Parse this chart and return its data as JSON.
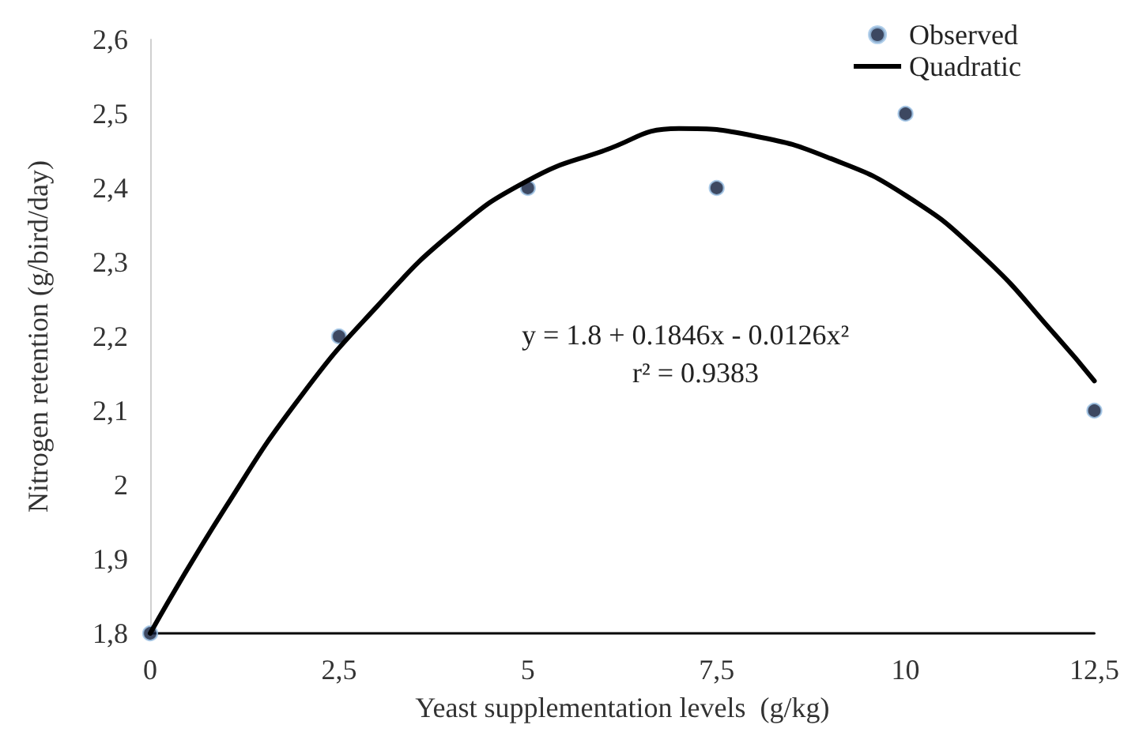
{
  "chart_data": {
    "type": "scatter",
    "xlabel": "Yeast supplementation levels  (g/kg)",
    "ylabel": "Nitrogen retention (g/bird/day)",
    "series": [
      {
        "name": "Observed",
        "color": "#0d1a3a",
        "marker": "circle",
        "x": [
          0,
          2.5,
          5,
          7.5,
          10,
          12.5
        ],
        "values": [
          1.8,
          2.2,
          2.4,
          2.4,
          2.5,
          2.1
        ]
      },
      {
        "name": "Quadratic",
        "type": "line",
        "color": "#000000",
        "marker": "none",
        "line_style": "solid",
        "x": [
          0,
          1,
          2,
          3,
          4,
          5,
          6,
          7,
          8,
          9,
          10,
          11,
          12,
          12.5
        ],
        "values": [
          1.8,
          1.97,
          2.12,
          2.24,
          2.34,
          2.41,
          2.45,
          2.48,
          2.47,
          2.44,
          2.39,
          2.31,
          2.2,
          2.14
        ]
      }
    ],
    "xlim": [
      0,
      12.5
    ],
    "xticks": [
      0,
      {
        "value": 2.5,
        "label": "2,5"
      },
      5,
      {
        "value": 7.5,
        "label": "7,5"
      },
      10,
      {
        "value": 12.5,
        "label": "12,5"
      }
    ],
    "ylim": [
      1.8,
      2.6
    ],
    "yticks": [
      {
        "value": 1.8,
        "label": "1,8"
      },
      {
        "value": 1.9,
        "label": "1,9"
      },
      2,
      {
        "value": 2.1,
        "label": "2,1"
      },
      {
        "value": 2.2,
        "label": "2,2"
      },
      {
        "value": 2.3,
        "label": "2,3"
      },
      {
        "value": 2.4,
        "label": "2,4"
      },
      {
        "value": 2.5,
        "label": "2,5"
      },
      {
        "value": 2.6,
        "label": "2,6"
      }
    ],
    "grid": false,
    "legend": "top right",
    "annotations": [
      "y = 1.8 + 0.1846x - 0.0126x²",
      "r² = 0.9383"
    ]
  }
}
